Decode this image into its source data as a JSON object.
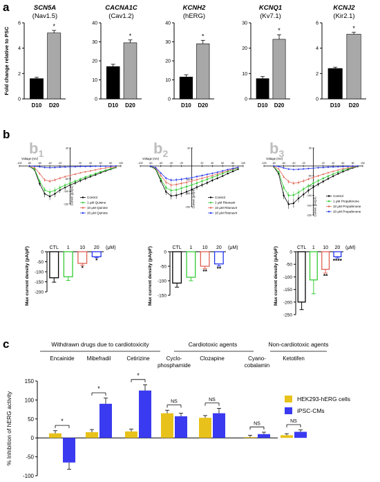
{
  "panel_labels": {
    "a": "a",
    "b": "b",
    "c": "c"
  },
  "b_sublabels": [
    {
      "letter": "b",
      "sub": "1"
    },
    {
      "letter": "b",
      "sub": "2"
    },
    {
      "letter": "b",
      "sub": "3"
    }
  ],
  "colors": {
    "d10": "#000000",
    "d20": "#a8a8a8",
    "control": "#000000",
    "low": "#33cc33",
    "mid": "#e06050",
    "high": "#2233ee",
    "hek": "#e8c21a",
    "ipsc": "#3a3af0"
  },
  "chart_data": [
    {
      "type": "bar",
      "panel": "a",
      "title": "SCN5A",
      "subtitle": "(Nav1.5)",
      "ylabel": "Fold change relative to PSC",
      "categories": [
        "D10",
        "D20"
      ],
      "values": [
        1.6,
        5.2
      ],
      "errors": [
        0.1,
        0.2
      ],
      "ylim": [
        0,
        6
      ],
      "yticks": [
        0,
        2,
        4,
        6
      ],
      "annotations": [
        "*"
      ]
    },
    {
      "type": "bar",
      "panel": "a",
      "title": "CACNA1C",
      "subtitle": "(Cav1.2)",
      "ylabel": "",
      "categories": [
        "D10",
        "D20"
      ],
      "values": [
        17,
        29.5
      ],
      "errors": [
        1.2,
        1.5
      ],
      "ylim": [
        0,
        40
      ],
      "yticks": [
        0,
        10,
        20,
        30,
        40
      ],
      "annotations": [
        "*"
      ]
    },
    {
      "type": "bar",
      "panel": "a",
      "title": "KCNH2",
      "subtitle": "(hERG)",
      "ylabel": "",
      "categories": [
        "D10",
        "D20"
      ],
      "values": [
        11.5,
        29
      ],
      "errors": [
        1.2,
        1.8
      ],
      "ylim": [
        0,
        40
      ],
      "yticks": [
        0,
        10,
        20,
        30,
        40
      ],
      "annotations": [
        "*"
      ]
    },
    {
      "type": "bar",
      "panel": "a",
      "title": "KCNQ1",
      "subtitle": "(Kv7.1)",
      "ylabel": "",
      "categories": [
        "D10",
        "D20"
      ],
      "values": [
        8,
        23.5
      ],
      "errors": [
        0.8,
        1.8
      ],
      "ylim": [
        0,
        30
      ],
      "yticks": [
        0,
        10,
        20,
        30
      ],
      "annotations": [
        "*"
      ]
    },
    {
      "type": "bar",
      "panel": "a",
      "title": "KCNJ2",
      "subtitle": "(Kir2.1)",
      "ylabel": "",
      "categories": [
        "D10",
        "D20"
      ],
      "values": [
        2.4,
        5.1
      ],
      "errors": [
        0.1,
        0.15
      ],
      "ylim": [
        0,
        6
      ],
      "yticks": [
        0,
        2,
        4,
        6
      ],
      "annotations": [
        "*"
      ]
    },
    {
      "type": "line",
      "panel": "b1",
      "xlabel": "Voltage (mV)",
      "ylabel": "Current (pA/pF)",
      "xlim": [
        -100,
        100
      ],
      "ylim": [
        -150,
        30
      ],
      "xticks": [
        -100,
        -80,
        -60,
        -40,
        -20,
        20,
        40,
        60,
        80,
        100
      ],
      "yticks": [
        30,
        -50,
        -100,
        -150
      ],
      "x": [
        -80,
        -70,
        -60,
        -50,
        -40,
        -30,
        -20,
        -10,
        0,
        10,
        20,
        30,
        40,
        50,
        60,
        70,
        80,
        90
      ],
      "series": [
        {
          "name": "Control",
          "values": [
            -2,
            -15,
            -70,
            -110,
            -120,
            -110,
            -95,
            -85,
            -75,
            -67,
            -58,
            -50,
            -42,
            -35,
            -27,
            -20,
            -13,
            -6
          ]
        },
        {
          "name": "1 μM Quinine",
          "values": [
            -2,
            -12,
            -60,
            -95,
            -103,
            -96,
            -85,
            -76,
            -68,
            -60,
            -52,
            -44,
            -37,
            -30,
            -23,
            -17,
            -11,
            -5
          ]
        },
        {
          "name": "10 μM Quinine",
          "values": [
            -1,
            -6,
            -30,
            -55,
            -60,
            -55,
            -48,
            -42,
            -37,
            -32,
            -27,
            -23,
            -19,
            -15,
            -11,
            -8,
            -5,
            -3
          ]
        },
        {
          "name": "20 μM Quinine",
          "values": [
            0,
            -1,
            -3,
            -6,
            -7,
            -6,
            -5,
            -4,
            -3,
            -3,
            -2,
            -2,
            -2,
            -1,
            -1,
            -1,
            -1,
            0
          ]
        }
      ]
    },
    {
      "type": "line",
      "panel": "b2",
      "xlabel": "Voltage (mV)",
      "ylabel": "Current (pA/pF)",
      "xlim": [
        -100,
        100
      ],
      "ylim": [
        -150,
        30
      ],
      "xticks": [
        -100,
        -80,
        -60,
        -40,
        -20,
        20,
        40,
        60,
        80,
        100
      ],
      "yticks": [
        30,
        -50,
        -100,
        -150
      ],
      "x": [
        -80,
        -70,
        -60,
        -50,
        -40,
        -30,
        -20,
        -10,
        0,
        10,
        20,
        30,
        40,
        50,
        60,
        70,
        80,
        90
      ],
      "series": [
        {
          "name": "Control",
          "values": [
            -2,
            -12,
            -55,
            -95,
            -110,
            -108,
            -102,
            -95,
            -87,
            -78,
            -70,
            -62,
            -53,
            -45,
            -37,
            -28,
            -20,
            -12
          ]
        },
        {
          "name": "1 μM Ritonavir",
          "values": [
            -2,
            -10,
            -48,
            -80,
            -90,
            -88,
            -82,
            -76,
            -70,
            -63,
            -56,
            -49,
            -42,
            -35,
            -28,
            -21,
            -14,
            -8
          ]
        },
        {
          "name": "10 μM Ritonavir",
          "values": [
            -1,
            -8,
            -35,
            -60,
            -70,
            -68,
            -64,
            -60,
            -55,
            -50,
            -45,
            -40,
            -35,
            -29,
            -23,
            -17,
            -11,
            -6
          ]
        },
        {
          "name": "20 μM Ritonavir",
          "values": [
            -1,
            -6,
            -26,
            -45,
            -52,
            -51,
            -49,
            -46,
            -43,
            -39,
            -35,
            -31,
            -27,
            -23,
            -18,
            -13,
            -9,
            -5
          ]
        }
      ]
    },
    {
      "type": "line",
      "panel": "b3",
      "xlabel": "Voltage (mV)",
      "ylabel": "Current (pA/pF)",
      "xlim": [
        -100,
        100
      ],
      "ylim": [
        -250,
        50
      ],
      "xticks": [
        -100,
        -80,
        -60,
        -40,
        -20,
        20,
        40,
        60,
        80,
        100
      ],
      "yticks": [
        50,
        -50,
        -100,
        -150,
        -200,
        -250
      ],
      "x": [
        -80,
        -70,
        -60,
        -50,
        -40,
        -30,
        -20,
        -10,
        0,
        10,
        20,
        30,
        40,
        50,
        60,
        70,
        80,
        90
      ],
      "series": [
        {
          "name": "Control",
          "values": [
            -5,
            -40,
            -150,
            -195,
            -190,
            -165,
            -145,
            -125,
            -108,
            -93,
            -79,
            -65,
            -52,
            -40,
            -29,
            -19,
            -10,
            -3
          ]
        },
        {
          "name": "1 μM Propafenone",
          "values": [
            -4,
            -30,
            -110,
            -150,
            -148,
            -135,
            -118,
            -102,
            -88,
            -75,
            -63,
            -52,
            -41,
            -31,
            -22,
            -14,
            -7,
            -2
          ]
        },
        {
          "name": "10 μM Propafenone",
          "values": [
            -2,
            -15,
            -55,
            -80,
            -88,
            -84,
            -76,
            -67,
            -58,
            -50,
            -42,
            -34,
            -27,
            -20,
            -14,
            -9,
            -5,
            -1
          ]
        },
        {
          "name": "20 μM Propafenone",
          "values": [
            0,
            -3,
            -10,
            -16,
            -18,
            -17,
            -15,
            -13,
            -11,
            -9,
            -8,
            -6,
            -5,
            -4,
            -3,
            -2,
            -1,
            0
          ]
        }
      ]
    },
    {
      "type": "bar",
      "panel": "b1-bar",
      "ylabel": "Max current density (pA/pF)",
      "categories": [
        "CTL",
        "1",
        "10",
        "20"
      ],
      "unit": "(μM)",
      "values": [
        -130,
        -125,
        -58,
        -25
      ],
      "errors": [
        22,
        18,
        10,
        5
      ],
      "ylim": [
        -200,
        0
      ],
      "yticks": [
        0,
        -50,
        -100,
        -150,
        -200
      ],
      "annotations": [
        "",
        "",
        "*",
        "*"
      ]
    },
    {
      "type": "bar",
      "panel": "b2-bar",
      "ylabel": "Max current density (pA/pF)",
      "categories": [
        "CTL",
        "1",
        "10",
        "20"
      ],
      "unit": "(μM)",
      "values": [
        -108,
        -88,
        -50,
        -42
      ],
      "errors": [
        14,
        12,
        8,
        7
      ],
      "ylim": [
        -150,
        0
      ],
      "yticks": [
        0,
        -50,
        -100,
        -150
      ],
      "annotations": [
        "",
        "",
        "**",
        "**"
      ]
    },
    {
      "type": "bar",
      "panel": "b3-bar",
      "ylabel": "Max current density (pA/pF)",
      "categories": [
        "CTL",
        "1",
        "10",
        "20"
      ],
      "unit": "(μM)",
      "values": [
        -200,
        -112,
        -70,
        -20
      ],
      "errors": [
        30,
        55,
        15,
        5
      ],
      "ylim": [
        -250,
        0
      ],
      "yticks": [
        0,
        -50,
        -100,
        -150,
        -200,
        -250
      ],
      "annotations": [
        "",
        "",
        "**",
        "****"
      ]
    },
    {
      "type": "bar",
      "panel": "c",
      "ylabel": "% Inhibition of hERG activity",
      "ylim": [
        -100,
        150
      ],
      "yticks": [
        -100,
        -50,
        0,
        50,
        100,
        150
      ],
      "groups": [
        {
          "label": "Withdrawn drugs due to cardiotoxicity",
          "drugs": [
            "Encainide",
            "Mibefradil",
            "Cetirizine"
          ]
        },
        {
          "label": "Cardiotoxic agents",
          "drugs": [
            "Cyclo-\nphosphamide",
            "Clozapine"
          ]
        },
        {
          "label": "Non-cardiotoxic agents",
          "drugs": [
            "Cyano-\ncobalamin",
            "Ketotifen"
          ]
        }
      ],
      "categories": [
        "Encainide",
        "Mibefradil",
        "Cetirizine",
        "Cyclo-phosphamide",
        "Clozapine",
        "Cyano-cobalamin",
        "Ketotifen"
      ],
      "series": [
        {
          "name": "HEK293-hERG  cells",
          "values": [
            12,
            15,
            17,
            65,
            53,
            2,
            7
          ],
          "errors": [
            7,
            7,
            6,
            8,
            6,
            5,
            4
          ]
        },
        {
          "name": "iPSC-CMs",
          "values": [
            -65,
            90,
            125,
            57,
            65,
            10,
            16
          ],
          "errors": [
            18,
            15,
            15,
            8,
            13,
            5,
            5
          ]
        }
      ],
      "annotations": [
        "*",
        "*",
        "*",
        "NS",
        "NS",
        "NS",
        "NS"
      ]
    }
  ]
}
